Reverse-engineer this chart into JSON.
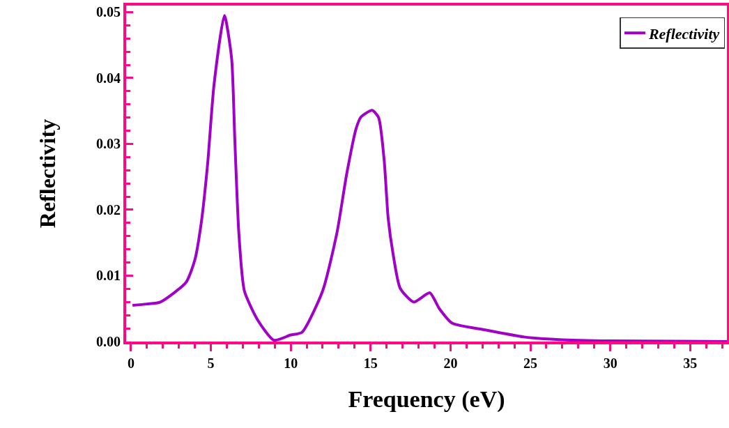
{
  "chart_data": {
    "type": "line",
    "xlabel": "Frequency (eV)",
    "ylabel": "Reflectivity",
    "x": [
      0.1,
      1.0,
      1.84,
      3.45,
      4.0,
      4.4,
      4.8,
      5.2,
      5.85,
      6.3,
      6.5,
      6.75,
      7.1,
      7.95,
      8.95,
      10.0,
      10.7,
      12.0,
      12.9,
      13.5,
      14.1,
      14.4,
      15.1,
      15.5,
      15.85,
      16.1,
      16.4,
      16.85,
      17.7,
      18.7,
      19.3,
      20.1,
      22.1,
      24.6,
      26.8,
      30.1,
      37.3
    ],
    "series": [
      {
        "name": "Reflectivity",
        "color": "#a000c8",
        "values": [
          0.0055,
          0.0057,
          0.006,
          0.009,
          0.0124,
          0.018,
          0.027,
          0.039,
          0.0495,
          0.043,
          0.0307,
          0.0166,
          0.0077,
          0.0032,
          0.0002,
          0.001,
          0.0014,
          0.0077,
          0.0166,
          0.0254,
          0.0324,
          0.0341,
          0.0351,
          0.034,
          0.0275,
          0.0187,
          0.0134,
          0.0081,
          0.006,
          0.0074,
          0.005,
          0.0028,
          0.0018,
          0.0007,
          0.0003,
          0.0001,
          0.0
        ]
      }
    ],
    "xlim": [
      -0.3,
      37.3
    ],
    "xticks": [
      0,
      5,
      10,
      15,
      20,
      25,
      30,
      35
    ],
    "ylim": [
      0,
      0.051
    ],
    "yticks": [
      {
        "value": 0,
        "label": "0.00"
      },
      {
        "value": 0.01,
        "label": "0.01"
      },
      {
        "value": 0.02,
        "label": "0.02"
      },
      {
        "value": 0.03,
        "label": "0.03"
      },
      {
        "value": 0.04,
        "label": "0.04"
      },
      {
        "value": 0.05,
        "label": "0.05"
      }
    ],
    "grid": false,
    "legend": "top right",
    "marker": "none",
    "line_style": "solid"
  }
}
